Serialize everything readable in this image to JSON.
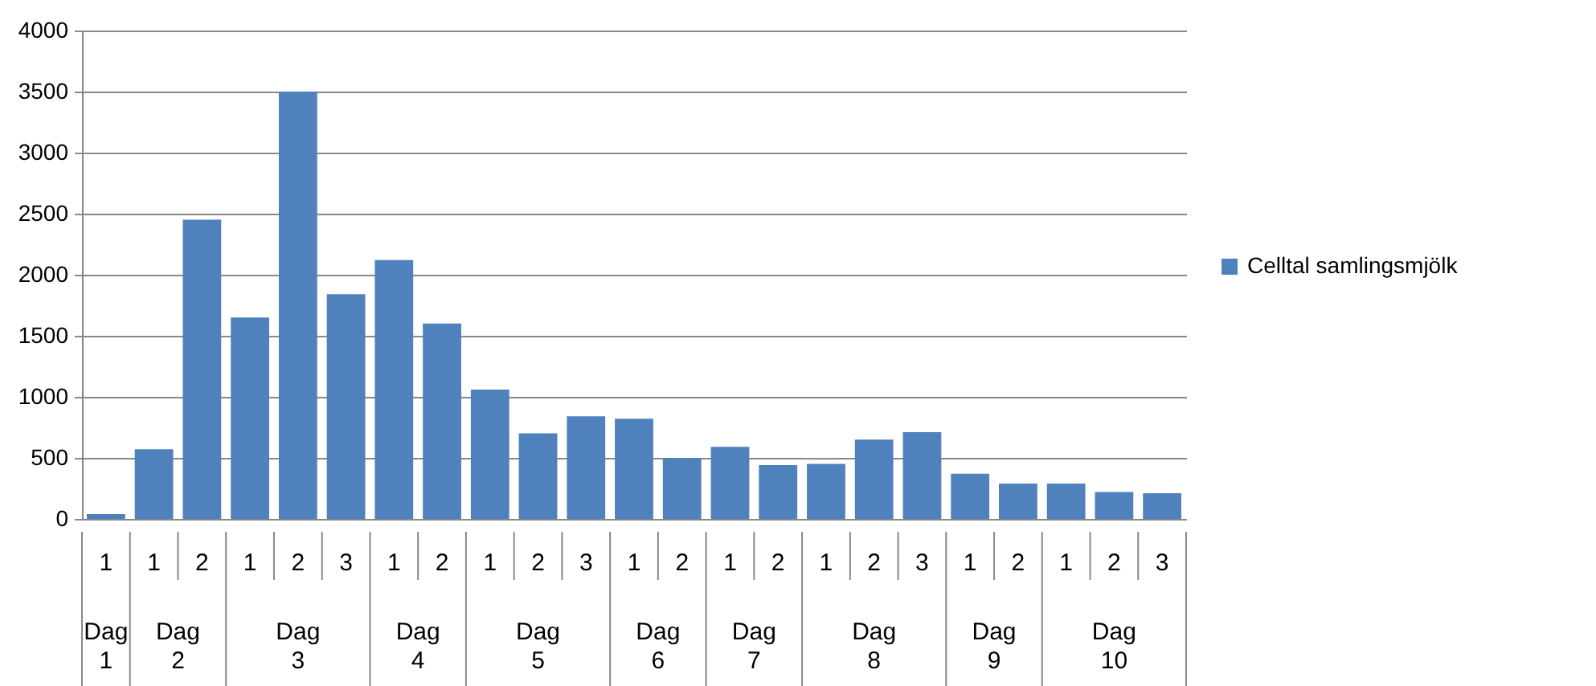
{
  "chart_data": {
    "type": "bar",
    "categories": [
      "1",
      "1",
      "2",
      "1",
      "2",
      "3",
      "1",
      "2",
      "1",
      "2",
      "3",
      "1",
      "2",
      "1",
      "2",
      "1",
      "2",
      "3",
      "1",
      "2",
      "1",
      "2",
      "3"
    ],
    "annotations": [
      "Dag 1",
      "Dag 2",
      "Dag 3",
      "Dag 4",
      "Dag 5",
      "Dag 6",
      "Dag 7",
      "Dag 8",
      "Dag 9",
      "Dag 10"
    ],
    "series": [
      {
        "name": "Celltal samlingsmjölk",
        "color": "#4f81bd",
        "values": [
          40,
          570,
          2450,
          1650,
          3500,
          1840,
          2120,
          1600,
          1060,
          700,
          840,
          820,
          500,
          590,
          440,
          450,
          650,
          710,
          370,
          290,
          290,
          220,
          210
        ]
      }
    ],
    "ylim": [
      0,
      4000
    ],
    "yticks": [
      0,
      500,
      1000,
      1500,
      2000,
      2500,
      3000,
      3500,
      4000
    ],
    "grid": "y",
    "legend": "right"
  }
}
